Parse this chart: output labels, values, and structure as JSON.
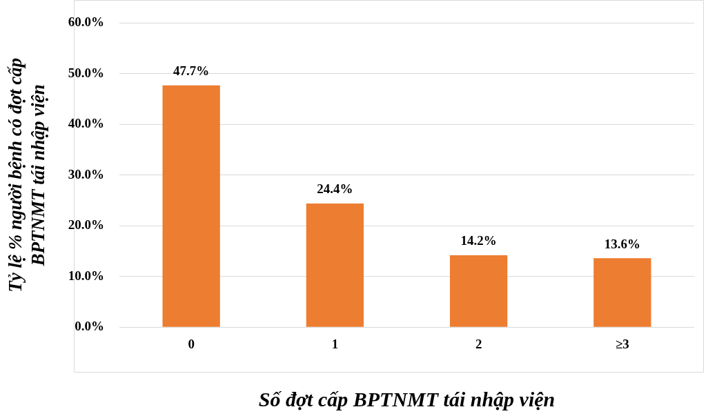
{
  "chart_data": {
    "type": "bar",
    "xlabel": "Số đợt cấp BPTNMT tái nhập viện",
    "ylabel": "Tỷ lệ % người bệnh có đợt cấp\nBPTNMT tái nhập viện",
    "categories": [
      "0",
      "1",
      "2",
      "≥3"
    ],
    "values": [
      47.7,
      24.4,
      14.2,
      13.6
    ],
    "color": "#ed7d31",
    "value_labels": [
      "47.7%",
      "24.4%",
      "14.2%",
      "13.6%"
    ],
    "ylim": [
      0,
      60
    ],
    "yticks": [
      {
        "value": 0,
        "label": "0.0%"
      },
      {
        "value": 10,
        "label": "10.0%"
      },
      {
        "value": 20,
        "label": "20.0%"
      },
      {
        "value": 30,
        "label": "30.0%"
      },
      {
        "value": 40,
        "label": "40.0%"
      },
      {
        "value": 50,
        "label": "50.0%"
      },
      {
        "value": 60,
        "label": "60.0%"
      }
    ],
    "grid": "y",
    "legend": false
  }
}
